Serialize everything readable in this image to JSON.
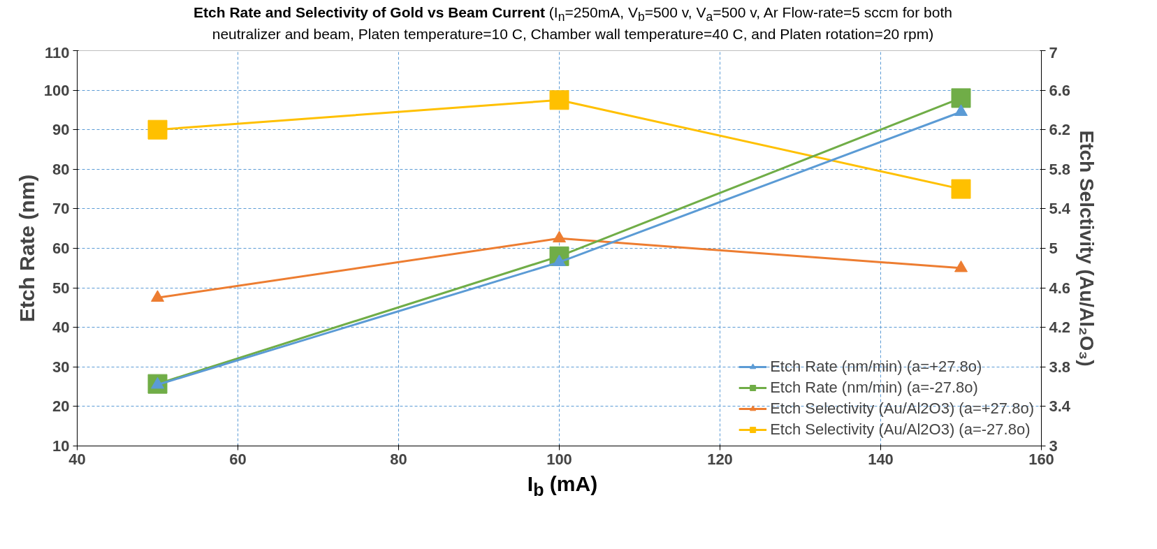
{
  "chart_data": {
    "type": "line",
    "title": "Etch Rate and Selectivity of Gold vs Beam Current",
    "subtitle": "(I$_{n}$=250mA, V$_{b}$=500 v, V$_{a}$=500 v, Ar Flow-rate=5 sccm for both neutralizer and beam, Platen temperature=10 C, Chamber wall temperature=40 C, and Platen rotation=20 rpm)",
    "xlabel": "I$_{b}$ (mA)",
    "ylabel": "Etch Rate (nm)",
    "y2label": "Etch Selctivity (Au/Al₂O₃)",
    "x": [
      50,
      100,
      150
    ],
    "series": [
      {
        "name": "Etch Rate (nm/min) (a=+27.8o)",
        "color": "#5b9bd5",
        "marker": "triangle",
        "values": [
          25.5,
          56.5,
          94.5
        ]
      },
      {
        "name": "Etch Rate (nm/min) (a=-27.8o)",
        "color": "#70ad47",
        "marker": "square",
        "values": [
          25.7,
          58,
          98
        ]
      },
      {
        "name": "Etch Selectivity (Au/Al2O3) (a=+27.8o)",
        "color": "#ed7d31",
        "marker": "triangle",
        "axis": "y2",
        "values": [
          4.5,
          5.1,
          4.8
        ]
      },
      {
        "name": "Etch Selectivity (Au/Al2O3) (a=-27.8o)",
        "color": "#ffc000",
        "marker": "square",
        "axis": "y2",
        "values": [
          6.2,
          6.5,
          5.6
        ]
      }
    ],
    "xlim": [
      40,
      160
    ],
    "xticks": [
      40,
      60,
      80,
      100,
      120,
      140,
      160
    ],
    "ylim": [
      10,
      110
    ],
    "yticks": [
      10,
      20,
      30,
      40,
      50,
      60,
      70,
      80,
      90,
      100,
      110
    ],
    "y2lim": [
      3,
      7
    ],
    "y2ticks": [
      3,
      3.4,
      3.8,
      4.2,
      4.6,
      5,
      5.4,
      5.8,
      6.2,
      6.6,
      7
    ],
    "grid": true,
    "legend": "bottom right",
    "line_style": "solid"
  }
}
